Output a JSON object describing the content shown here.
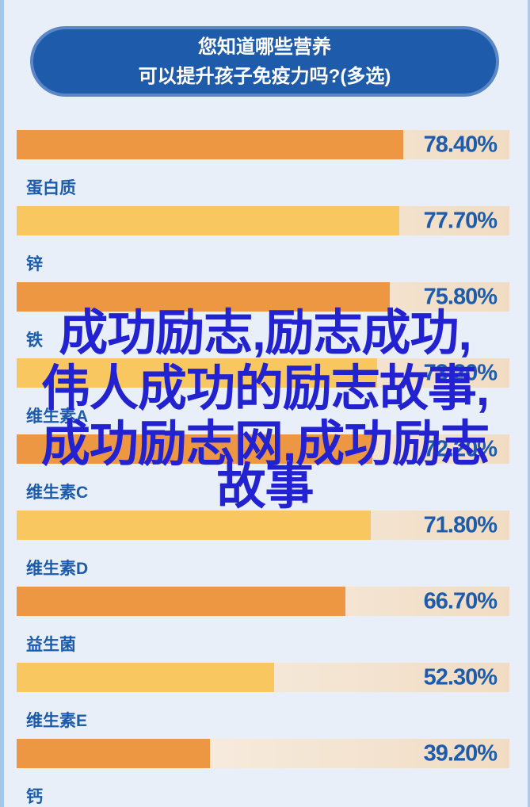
{
  "page": {
    "background": "#e8eff9",
    "edge_color": "#a5c7ea"
  },
  "header": {
    "line1": "您知道哪些营养",
    "line2": "可以提升孩子免疫力吗?(多选)",
    "fill_color": "#1f5bab",
    "ring_color": "#5c87c6",
    "text_color": "#ffffff"
  },
  "chart_data": {
    "type": "bar",
    "orientation": "horizontal",
    "title": "您知道哪些营养 可以提升孩子免疫力吗?(多选)",
    "categories": [
      "蛋白质",
      "锌",
      "铁",
      "维生素A",
      "维生素C",
      "维生素D",
      "益生菌",
      "维生素E",
      "钙"
    ],
    "values": [
      78.4,
      77.7,
      75.8,
      73.2,
      72.2,
      71.8,
      66.7,
      52.3,
      39.2
    ],
    "value_labels": [
      "78.40%",
      "77.70%",
      "75.80%",
      "73.20%",
      "72.20%",
      "71.80%",
      "66.70%",
      "52.30%",
      "39.20%"
    ],
    "bar_colors": [
      "#EE9743",
      "#F9C75F"
    ],
    "track_gradient": [
      "#f9f4ee",
      "#f1dcc3"
    ],
    "label_color": "#1d5cad",
    "value_color": "#1d5cad",
    "xlim": [
      0,
      100
    ],
    "grid": false,
    "legend": "none"
  },
  "watermark": {
    "color": "#2222d0",
    "lines": [
      "成功励志,励志成功,",
      "伟人成功的励志故事,",
      "成功励志网,成功励志",
      "故事"
    ]
  }
}
